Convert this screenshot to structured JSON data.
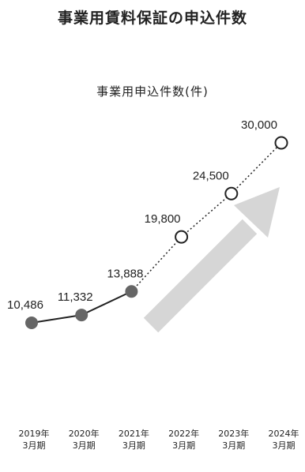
{
  "title": "事業用賃料保証の申込件数",
  "chart_data": {
    "type": "line",
    "title": "事業用申込件数(件)",
    "categories": [
      "2019年3月期",
      "2020年3月期",
      "2021年3月期",
      "2022年3月期",
      "2023年3月期",
      "2024年3月期"
    ],
    "tick_year": [
      "2019年",
      "2020年",
      "2021年",
      "2022年",
      "2023年",
      "2024年"
    ],
    "tick_period": [
      "3月期",
      "3月期",
      "3月期",
      "3月期",
      "3月期",
      "3月期"
    ],
    "values": [
      10486,
      11332,
      13888,
      19800,
      24500,
      30000
    ],
    "value_labels": [
      "10,486",
      "11,332",
      "13,888",
      "19,800",
      "24,500",
      "30,000"
    ],
    "actual_count": 3,
    "colors": {
      "actual": "#666666",
      "forecast_fill": "#ffffff",
      "arrow": "#d6d6d6",
      "line": "#222222"
    }
  }
}
